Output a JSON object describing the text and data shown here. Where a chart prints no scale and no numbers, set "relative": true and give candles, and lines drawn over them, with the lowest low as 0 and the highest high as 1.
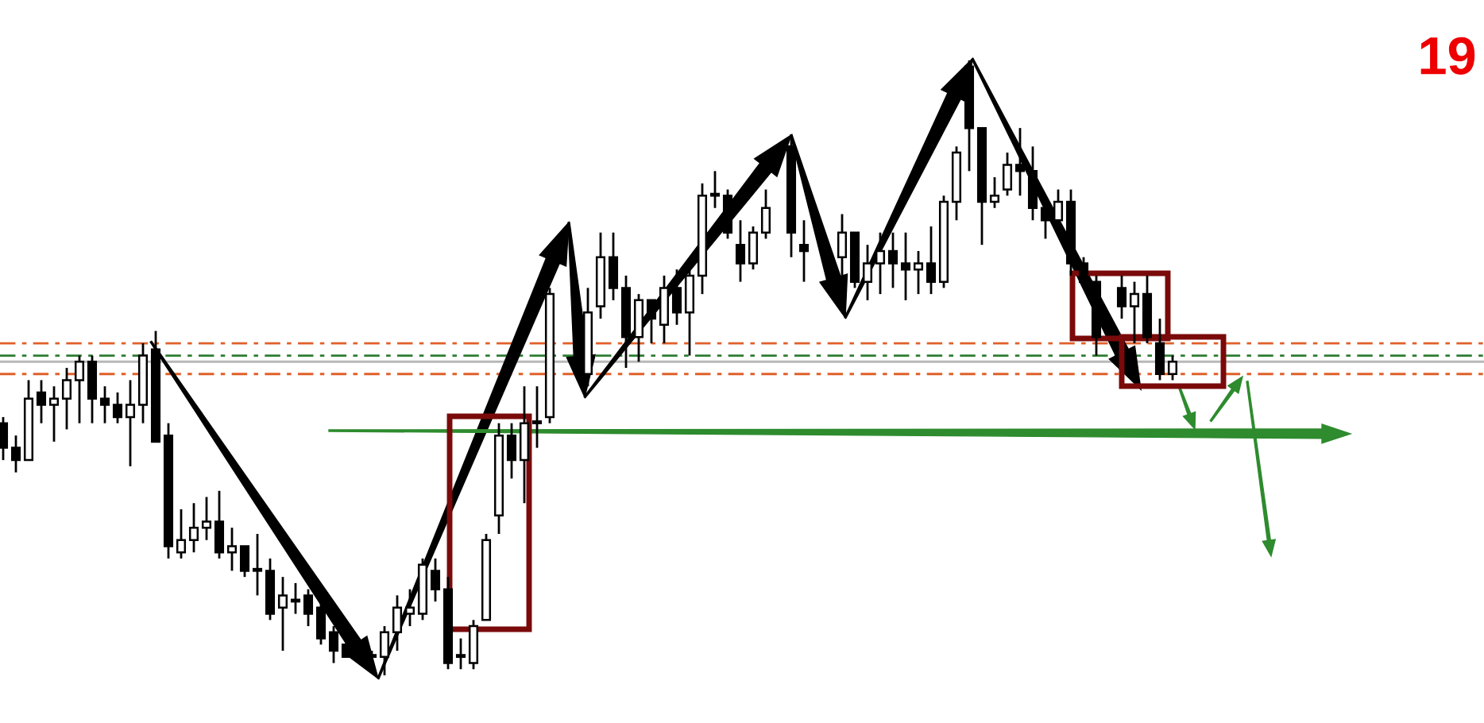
{
  "chart_data": {
    "type": "candlestick",
    "relative": true,
    "annotations": [
      "19"
    ],
    "categories": [
      null,
      null,
      null,
      null,
      null,
      null,
      null,
      null,
      null,
      null,
      null,
      null,
      null,
      null,
      null,
      null,
      null,
      null,
      null,
      null,
      null,
      null,
      null,
      null,
      null,
      null,
      null,
      null,
      null,
      null,
      null,
      null,
      null,
      null,
      null,
      null,
      null,
      null,
      null,
      null,
      null,
      null,
      null,
      null,
      null,
      null,
      null,
      null,
      null,
      null,
      null,
      null,
      null,
      null,
      null,
      null,
      null,
      null,
      null,
      null,
      null,
      null,
      null,
      null,
      null,
      null,
      null,
      null,
      null,
      null,
      null,
      null,
      null,
      null,
      null,
      null,
      null,
      null,
      null,
      null,
      null,
      null,
      null,
      null,
      null,
      null,
      null,
      null,
      null,
      null,
      null,
      null,
      null,
      null,
      null,
      null,
      null,
      null,
      null,
      null,
      null,
      null,
      null,
      null,
      null,
      null,
      null,
      null,
      null,
      null,
      null,
      null,
      null,
      null,
      null,
      null,
      null
    ],
    "ohlc": [
      [
        0.41,
        0.42,
        0.35,
        0.37
      ],
      [
        0.37,
        0.39,
        0.33,
        0.35
      ],
      [
        0.35,
        0.48,
        0.35,
        0.45
      ],
      [
        0.46,
        0.48,
        0.41,
        0.44
      ],
      [
        0.44,
        0.47,
        0.38,
        0.45
      ],
      [
        0.45,
        0.5,
        0.4,
        0.48
      ],
      [
        0.48,
        0.52,
        0.41,
        0.51
      ],
      [
        0.51,
        0.52,
        0.41,
        0.45
      ],
      [
        0.45,
        0.47,
        0.41,
        0.44
      ],
      [
        0.44,
        0.46,
        0.41,
        0.42
      ],
      [
        0.42,
        0.48,
        0.34,
        0.44
      ],
      [
        0.44,
        0.54,
        0.41,
        0.52
      ],
      [
        0.53,
        0.56,
        0.38,
        0.38
      ],
      [
        0.39,
        0.41,
        0.19,
        0.21
      ],
      [
        0.2,
        0.27,
        0.19,
        0.22
      ],
      [
        0.22,
        0.28,
        0.2,
        0.24
      ],
      [
        0.24,
        0.29,
        0.22,
        0.25
      ],
      [
        0.25,
        0.3,
        0.19,
        0.2
      ],
      [
        0.2,
        0.24,
        0.17,
        0.21
      ],
      [
        0.21,
        0.21,
        0.16,
        0.17
      ],
      [
        0.17,
        0.23,
        0.13,
        0.17
      ],
      [
        0.17,
        0.19,
        0.09,
        0.1
      ],
      [
        0.11,
        0.16,
        0.04,
        0.13
      ],
      [
        0.12,
        0.15,
        0.1,
        0.12
      ],
      [
        0.13,
        0.14,
        0.08,
        0.1
      ],
      [
        0.11,
        0.14,
        0.05,
        0.06
      ],
      [
        0.07,
        0.08,
        0.02,
        0.04
      ],
      [
        0.05,
        0.06,
        0.03,
        0.03
      ],
      null,
      [
        0.03,
        0.04,
        0.01,
        0.03
      ],
      [
        0.03,
        0.08,
        0.0,
        0.07
      ],
      [
        0.07,
        0.13,
        0.04,
        0.11
      ],
      [
        0.1,
        0.14,
        0.08,
        0.11
      ],
      [
        0.1,
        0.19,
        0.09,
        0.18
      ],
      [
        0.17,
        0.19,
        0.12,
        0.14
      ],
      [
        0.14,
        0.16,
        0.01,
        0.02
      ],
      [
        0.03,
        0.06,
        0.01,
        0.03
      ],
      [
        0.02,
        0.09,
        0.01,
        0.08
      ],
      [
        0.09,
        0.23,
        0.09,
        0.22
      ],
      [
        0.26,
        0.41,
        0.23,
        0.39
      ],
      [
        0.39,
        0.41,
        0.32,
        0.35
      ],
      [
        0.35,
        0.47,
        0.28,
        0.41
      ],
      [
        0.41,
        0.47,
        0.37,
        0.41
      ],
      [
        0.42,
        0.63,
        0.41,
        0.62
      ],
      null,
      null,
      [
        0.49,
        0.63,
        0.47,
        0.59
      ],
      [
        0.6,
        0.72,
        0.58,
        0.68
      ],
      [
        0.68,
        0.72,
        0.61,
        0.63
      ],
      [
        0.63,
        0.65,
        0.5,
        0.55
      ],
      [
        0.55,
        0.62,
        0.51,
        0.61
      ],
      [
        0.61,
        0.61,
        0.54,
        0.58
      ],
      [
        0.57,
        0.65,
        0.54,
        0.63
      ],
      [
        0.63,
        0.66,
        0.57,
        0.59
      ],
      [
        0.59,
        0.66,
        0.52,
        0.65
      ],
      [
        0.65,
        0.8,
        0.62,
        0.78
      ],
      [
        0.78,
        0.82,
        0.76,
        0.78
      ],
      [
        0.78,
        0.79,
        0.71,
        0.72
      ],
      [
        0.7,
        0.74,
        0.64,
        0.67
      ],
      [
        0.67,
        0.73,
        0.66,
        0.72
      ],
      [
        0.72,
        0.79,
        0.71,
        0.76
      ],
      null,
      [
        0.86,
        0.88,
        0.68,
        0.72
      ],
      [
        0.7,
        0.74,
        0.64,
        0.69
      ],
      null,
      null,
      [
        0.68,
        0.75,
        0.65,
        0.72
      ],
      [
        0.72,
        0.72,
        0.63,
        0.64
      ],
      [
        0.64,
        0.7,
        0.61,
        0.67
      ],
      [
        0.67,
        0.72,
        0.62,
        0.69
      ],
      [
        0.69,
        0.72,
        0.63,
        0.67
      ],
      [
        0.67,
        0.72,
        0.61,
        0.66
      ],
      [
        0.66,
        0.69,
        0.62,
        0.67
      ],
      [
        0.67,
        0.73,
        0.62,
        0.64
      ],
      [
        0.64,
        0.78,
        0.63,
        0.77
      ],
      [
        0.77,
        0.86,
        0.74,
        0.85
      ],
      [
        0.99,
        1.0,
        0.82,
        0.89
      ],
      [
        0.89,
        0.89,
        0.7,
        0.77
      ],
      [
        0.77,
        0.81,
        0.76,
        0.78
      ],
      [
        0.79,
        0.85,
        0.78,
        0.83
      ],
      [
        0.83,
        0.89,
        0.78,
        0.82
      ],
      [
        0.82,
        0.86,
        0.74,
        0.76
      ],
      [
        0.76,
        0.78,
        0.71,
        0.74
      ],
      [
        0.74,
        0.79,
        0.72,
        0.77
      ],
      [
        0.77,
        0.79,
        0.65,
        0.67
      ],
      [
        0.67,
        0.68,
        0.63,
        0.64
      ],
      [
        0.64,
        0.65,
        0.52,
        0.55
      ],
      null,
      [
        0.63,
        0.65,
        0.58,
        0.6
      ],
      [
        0.6,
        0.64,
        0.54,
        0.62
      ],
      [
        0.62,
        0.65,
        0.54,
        0.55
      ],
      [
        0.54,
        0.58,
        0.48,
        0.49
      ],
      [
        0.49,
        0.52,
        0.48,
        0.51
      ],
      null,
      null,
      null,
      null,
      null,
      null,
      null,
      null,
      null,
      null,
      null,
      null,
      null,
      null,
      null,
      null,
      null,
      null,
      null,
      null,
      null,
      null,
      null,
      null
    ],
    "ref_lines": [
      {
        "axis": "y",
        "value": 0.54,
        "color": "#e0602a",
        "line_style": "dashed"
      },
      {
        "axis": "y",
        "value": 0.52,
        "color": "#2e7d32",
        "line_style": "dashed"
      },
      {
        "axis": "y",
        "value": 0.51,
        "color": "#b8b8b8",
        "line_style": "solid"
      },
      {
        "axis": "y",
        "value": 0.49,
        "color": "#e0602a",
        "line_style": "dashed"
      }
    ]
  }
}
